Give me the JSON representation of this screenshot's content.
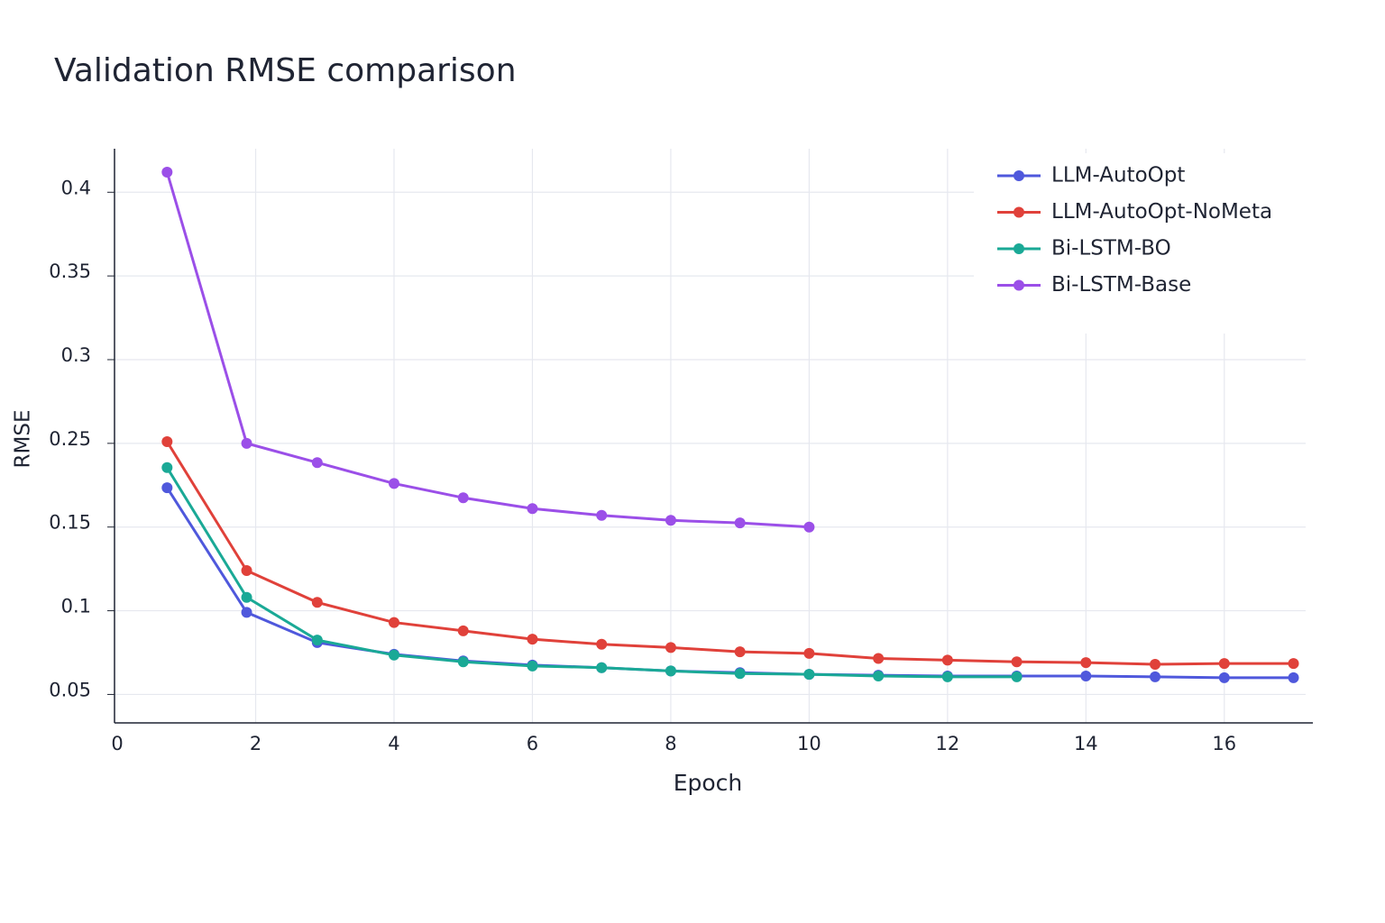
{
  "chart_data": {
    "type": "line",
    "title": "Validation RMSE comparison",
    "x_label": "Epoch",
    "y_label": "RMSE",
    "xlim": [
      -0.04,
      17.28
    ],
    "xticks": [
      0,
      2,
      4,
      6,
      8,
      10,
      12,
      14,
      16
    ],
    "ylim": [
      0.033,
      0.426
    ],
    "yticks": [
      0.4,
      0.35,
      0.3,
      0.25,
      0.15,
      0.1,
      0.05
    ],
    "grid": true,
    "legend": "top-right",
    "series": [
      {
        "name": "LLM-AutoOpt",
        "color": "#4f58dc",
        "x": [
          0.72,
          1.87,
          2.89,
          4,
          5,
          6,
          7,
          8,
          9,
          10,
          11,
          12,
          13,
          14,
          15,
          16,
          17
        ],
        "values": [
          0.197,
          0.099,
          0.081,
          0.074,
          0.07,
          0.0675,
          0.066,
          0.064,
          0.063,
          0.062,
          0.0615,
          0.061,
          0.061,
          0.061,
          0.0605,
          0.06,
          0.06
        ]
      },
      {
        "name": "LLM-AutoOpt-NoMeta",
        "color": "#e0413a",
        "x": [
          0.72,
          1.87,
          2.89,
          4,
          5,
          6,
          7,
          8,
          9,
          10,
          11,
          12,
          13,
          14,
          15,
          16,
          17
        ],
        "values": [
          0.251,
          0.124,
          0.105,
          0.093,
          0.088,
          0.083,
          0.08,
          0.078,
          0.0755,
          0.0745,
          0.0715,
          0.0705,
          0.0695,
          0.069,
          0.068,
          0.0685,
          0.0685
        ]
      },
      {
        "name": "Bi-LSTM-BO",
        "color": "#1aa996",
        "x": [
          0.72,
          1.87,
          2.89,
          4,
          5,
          6,
          7,
          8,
          9,
          10,
          11,
          12,
          13
        ],
        "values": [
          0.221,
          0.108,
          0.0825,
          0.0735,
          0.0695,
          0.067,
          0.066,
          0.064,
          0.0625,
          0.062,
          0.061,
          0.0605,
          0.0605
        ]
      },
      {
        "name": "Bi-LSTM-Base",
        "color": "#9b4fe8",
        "x": [
          0.72,
          1.87,
          2.89,
          4,
          5,
          6,
          7,
          8,
          9,
          10
        ],
        "values": [
          0.412,
          0.25,
          0.227,
          0.202,
          0.185,
          0.172,
          0.164,
          0.158,
          0.155,
          0.15
        ]
      }
    ]
  }
}
